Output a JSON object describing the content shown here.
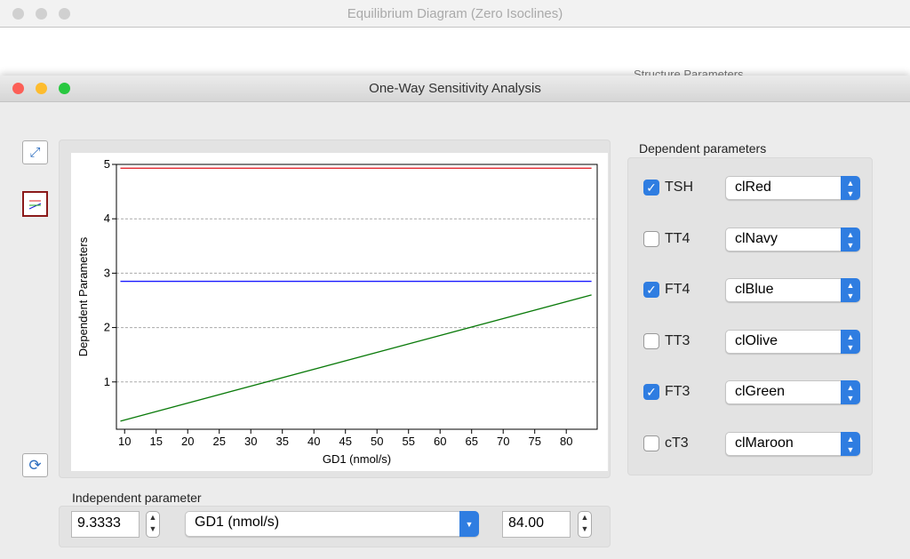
{
  "back_window": {
    "title": "Equilibrium Diagram (Zero Isoclines)",
    "partial_label": "Structure Parameters"
  },
  "window": {
    "title": "One-Way Sensitivity Analysis"
  },
  "chart_data": {
    "type": "line",
    "x_label": "GD1 (nmol/s)",
    "y_label": "Dependent Parameters",
    "x": [
      9.3333,
      84
    ],
    "series": [
      {
        "color": "#e0101a",
        "values": [
          4.93,
          4.93
        ]
      },
      {
        "color": "#1a1aff",
        "values": [
          2.85,
          2.85
        ]
      },
      {
        "color": "#0a7a0a",
        "values": [
          0.28,
          2.6
        ]
      }
    ],
    "xlim": [
      8.7,
      84.9
    ],
    "xticks": [
      10,
      15,
      20,
      25,
      30,
      35,
      40,
      45,
      50,
      55,
      60,
      65,
      70,
      75,
      80
    ],
    "ylim": [
      0.13,
      5.0
    ],
    "yticks": [
      1,
      2,
      3,
      4,
      5
    ],
    "grid": true
  },
  "dependent_parameters": {
    "label": "Dependent parameters",
    "items": [
      {
        "name": "TSH",
        "checked": true,
        "color": "clRed"
      },
      {
        "name": "TT4",
        "checked": false,
        "color": "clNavy"
      },
      {
        "name": "FT4",
        "checked": true,
        "color": "clBlue"
      },
      {
        "name": "TT3",
        "checked": false,
        "color": "clOlive"
      },
      {
        "name": "FT3",
        "checked": true,
        "color": "clGreen"
      },
      {
        "name": "cT3",
        "checked": false,
        "color": "clMaroon"
      }
    ]
  },
  "independent_parameter": {
    "label": "Independent parameter",
    "min": "9.3333",
    "parameter": "GD1 (nmol/s)",
    "max": "84.00"
  }
}
